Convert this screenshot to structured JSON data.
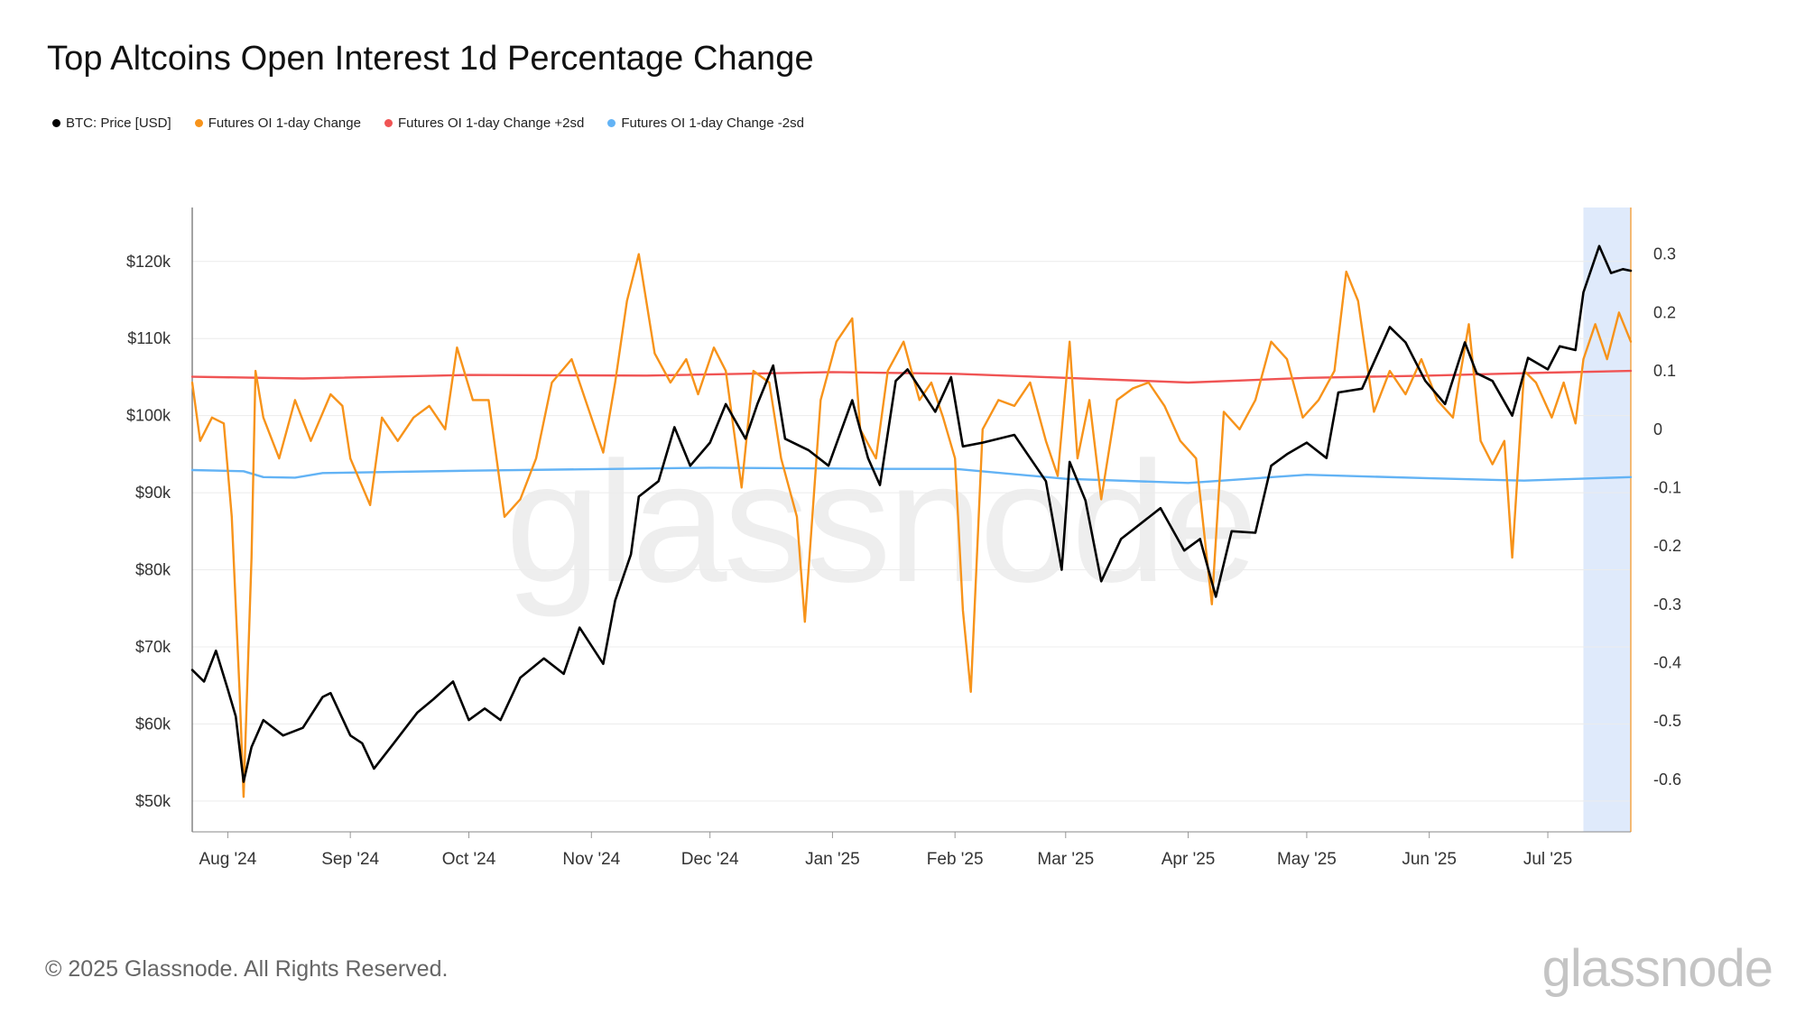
{
  "page": {
    "title": "Top Altcoins Open Interest 1d Percentage Change",
    "copyright": "© 2025 Glassnode. All Rights Reserved.",
    "brand": "glassnode",
    "watermark": "glassnode"
  },
  "legend": [
    {
      "label": "BTC: Price [USD]",
      "color": "#000000"
    },
    {
      "label": "Futures OI 1-day Change",
      "color": "#f7931a"
    },
    {
      "label": "Futures OI 1-day Change +2sd",
      "color": "#f05454"
    },
    {
      "label": "Futures OI 1-day Change -2sd",
      "color": "#63b3f5"
    }
  ],
  "chart_data": {
    "type": "line",
    "title": "Top Altcoins Open Interest 1d Percentage Change",
    "x_axis": {
      "type": "date",
      "range": [
        "2024-07-23",
        "2025-07-22"
      ],
      "ticks": [
        {
          "date": "2024-08-01",
          "label": "Aug '24"
        },
        {
          "date": "2024-09-01",
          "label": "Sep '24"
        },
        {
          "date": "2024-10-01",
          "label": "Oct '24"
        },
        {
          "date": "2024-11-01",
          "label": "Nov '24"
        },
        {
          "date": "2024-12-01",
          "label": "Dec '24"
        },
        {
          "date": "2025-01-01",
          "label": "Jan '25"
        },
        {
          "date": "2025-02-01",
          "label": "Feb '25"
        },
        {
          "date": "2025-03-01",
          "label": "Mar '25"
        },
        {
          "date": "2025-04-01",
          "label": "Apr '25"
        },
        {
          "date": "2025-05-01",
          "label": "May '25"
        },
        {
          "date": "2025-06-01",
          "label": "Jun '25"
        },
        {
          "date": "2025-07-01",
          "label": "Jul '25"
        }
      ]
    },
    "y_left": {
      "range": [
        46000,
        127000
      ],
      "ticks": [
        {
          "value": 50000,
          "label": "$50k"
        },
        {
          "value": 60000,
          "label": "$60k"
        },
        {
          "value": 70000,
          "label": "$70k"
        },
        {
          "value": 80000,
          "label": "$80k"
        },
        {
          "value": 90000,
          "label": "$90k"
        },
        {
          "value": 100000,
          "label": "$100k"
        },
        {
          "value": 110000,
          "label": "$110k"
        },
        {
          "value": 120000,
          "label": "$120k"
        }
      ]
    },
    "y_right": {
      "range": [
        -0.69,
        0.38
      ],
      "ticks": [
        {
          "value": 0.3,
          "label": "0.3"
        },
        {
          "value": 0.2,
          "label": "0.2"
        },
        {
          "value": 0.1,
          "label": "0.1"
        },
        {
          "value": 0,
          "label": "0"
        },
        {
          "value": -0.1,
          "label": "-0.1"
        },
        {
          "value": -0.2,
          "label": "-0.2"
        },
        {
          "value": -0.3,
          "label": "-0.3"
        },
        {
          "value": -0.4,
          "label": "-0.4"
        },
        {
          "value": -0.5,
          "label": "-0.5"
        },
        {
          "value": -0.6,
          "label": "-0.6"
        }
      ]
    },
    "grid": true,
    "highlight": {
      "from": "2025-07-10",
      "to": "2025-07-22"
    },
    "series": [
      {
        "name": "BTC: Price [USD]",
        "axis": "left",
        "color": "#000000",
        "points": [
          [
            "2024-07-23",
            67000
          ],
          [
            "2024-07-26",
            65500
          ],
          [
            "2024-07-29",
            69500
          ],
          [
            "2024-08-01",
            64500
          ],
          [
            "2024-08-03",
            61000
          ],
          [
            "2024-08-05",
            52500
          ],
          [
            "2024-08-07",
            57000
          ],
          [
            "2024-08-10",
            60500
          ],
          [
            "2024-08-15",
            58500
          ],
          [
            "2024-08-20",
            59500
          ],
          [
            "2024-08-25",
            63500
          ],
          [
            "2024-08-27",
            64000
          ],
          [
            "2024-09-01",
            58500
          ],
          [
            "2024-09-04",
            57500
          ],
          [
            "2024-09-07",
            54200
          ],
          [
            "2024-09-12",
            57500
          ],
          [
            "2024-09-18",
            61500
          ],
          [
            "2024-09-22",
            63200
          ],
          [
            "2024-09-27",
            65500
          ],
          [
            "2024-10-01",
            60500
          ],
          [
            "2024-10-05",
            62000
          ],
          [
            "2024-10-09",
            60500
          ],
          [
            "2024-10-14",
            66000
          ],
          [
            "2024-10-20",
            68500
          ],
          [
            "2024-10-25",
            66500
          ],
          [
            "2024-10-29",
            72500
          ],
          [
            "2024-11-04",
            67800
          ],
          [
            "2024-11-07",
            76000
          ],
          [
            "2024-11-11",
            82000
          ],
          [
            "2024-11-13",
            89500
          ],
          [
            "2024-11-18",
            91500
          ],
          [
            "2024-11-22",
            98500
          ],
          [
            "2024-11-26",
            93500
          ],
          [
            "2024-12-01",
            96500
          ],
          [
            "2024-12-05",
            101500
          ],
          [
            "2024-12-10",
            97000
          ],
          [
            "2024-12-13",
            101500
          ],
          [
            "2024-12-17",
            106500
          ],
          [
            "2024-12-20",
            97000
          ],
          [
            "2024-12-26",
            95500
          ],
          [
            "2024-12-31",
            93500
          ],
          [
            "2025-01-06",
            102000
          ],
          [
            "2025-01-10",
            94500
          ],
          [
            "2025-01-13",
            91000
          ],
          [
            "2025-01-17",
            104500
          ],
          [
            "2025-01-20",
            106000
          ],
          [
            "2025-01-27",
            100500
          ],
          [
            "2025-01-31",
            105000
          ],
          [
            "2025-02-03",
            96000
          ],
          [
            "2025-02-08",
            96500
          ],
          [
            "2025-02-16",
            97500
          ],
          [
            "2025-02-24",
            91500
          ],
          [
            "2025-02-28",
            80000
          ],
          [
            "2025-03-02",
            94000
          ],
          [
            "2025-03-06",
            89000
          ],
          [
            "2025-03-10",
            78500
          ],
          [
            "2025-03-15",
            84000
          ],
          [
            "2025-03-20",
            86000
          ],
          [
            "2025-03-25",
            88000
          ],
          [
            "2025-03-31",
            82500
          ],
          [
            "2025-04-04",
            84000
          ],
          [
            "2025-04-08",
            76500
          ],
          [
            "2025-04-12",
            85000
          ],
          [
            "2025-04-18",
            84800
          ],
          [
            "2025-04-22",
            93500
          ],
          [
            "2025-04-26",
            95000
          ],
          [
            "2025-05-01",
            96500
          ],
          [
            "2025-05-06",
            94500
          ],
          [
            "2025-05-09",
            103000
          ],
          [
            "2025-05-15",
            103500
          ],
          [
            "2025-05-22",
            111500
          ],
          [
            "2025-05-26",
            109500
          ],
          [
            "2025-05-31",
            104500
          ],
          [
            "2025-06-05",
            101500
          ],
          [
            "2025-06-10",
            109500
          ],
          [
            "2025-06-13",
            105500
          ],
          [
            "2025-06-17",
            104500
          ],
          [
            "2025-06-22",
            100000
          ],
          [
            "2025-06-26",
            107500
          ],
          [
            "2025-07-01",
            106000
          ],
          [
            "2025-07-04",
            109000
          ],
          [
            "2025-07-08",
            108500
          ],
          [
            "2025-07-10",
            116000
          ],
          [
            "2025-07-14",
            122000
          ],
          [
            "2025-07-17",
            118500
          ],
          [
            "2025-07-20",
            119000
          ],
          [
            "2025-07-22",
            118800
          ]
        ]
      },
      {
        "name": "Futures OI 1-day Change",
        "axis": "right",
        "color": "#f7931a",
        "points": [
          [
            "2024-07-23",
            0.08
          ],
          [
            "2024-07-25",
            -0.02
          ],
          [
            "2024-07-28",
            0.02
          ],
          [
            "2024-07-31",
            0.01
          ],
          [
            "2024-08-02",
            -0.15
          ],
          [
            "2024-08-04",
            -0.45
          ],
          [
            "2024-08-05",
            -0.63
          ],
          [
            "2024-08-07",
            -0.22
          ],
          [
            "2024-08-08",
            0.1
          ],
          [
            "2024-08-10",
            0.02
          ],
          [
            "2024-08-14",
            -0.05
          ],
          [
            "2024-08-18",
            0.05
          ],
          [
            "2024-08-22",
            -0.02
          ],
          [
            "2024-08-27",
            0.06
          ],
          [
            "2024-08-30",
            0.04
          ],
          [
            "2024-09-01",
            -0.05
          ],
          [
            "2024-09-06",
            -0.13
          ],
          [
            "2024-09-09",
            0.02
          ],
          [
            "2024-09-13",
            -0.02
          ],
          [
            "2024-09-17",
            0.02
          ],
          [
            "2024-09-21",
            0.04
          ],
          [
            "2024-09-25",
            0.0
          ],
          [
            "2024-09-28",
            0.14
          ],
          [
            "2024-10-02",
            0.05
          ],
          [
            "2024-10-06",
            0.05
          ],
          [
            "2024-10-10",
            -0.15
          ],
          [
            "2024-10-14",
            -0.12
          ],
          [
            "2024-10-18",
            -0.05
          ],
          [
            "2024-10-22",
            0.08
          ],
          [
            "2024-10-27",
            0.12
          ],
          [
            "2024-10-31",
            0.04
          ],
          [
            "2024-11-04",
            -0.04
          ],
          [
            "2024-11-07",
            0.08
          ],
          [
            "2024-11-10",
            0.22
          ],
          [
            "2024-11-13",
            0.3
          ],
          [
            "2024-11-17",
            0.13
          ],
          [
            "2024-11-21",
            0.08
          ],
          [
            "2024-11-25",
            0.12
          ],
          [
            "2024-11-28",
            0.06
          ],
          [
            "2024-12-02",
            0.14
          ],
          [
            "2024-12-05",
            0.1
          ],
          [
            "2024-12-09",
            -0.1
          ],
          [
            "2024-12-12",
            0.1
          ],
          [
            "2024-12-16",
            0.08
          ],
          [
            "2024-12-19",
            -0.05
          ],
          [
            "2024-12-23",
            -0.15
          ],
          [
            "2024-12-25",
            -0.33
          ],
          [
            "2024-12-29",
            0.05
          ],
          [
            "2025-01-02",
            0.15
          ],
          [
            "2025-01-06",
            0.19
          ],
          [
            "2025-01-08",
            0.0
          ],
          [
            "2025-01-12",
            -0.05
          ],
          [
            "2025-01-15",
            0.1
          ],
          [
            "2025-01-19",
            0.15
          ],
          [
            "2025-01-23",
            0.05
          ],
          [
            "2025-01-26",
            0.08
          ],
          [
            "2025-01-29",
            0.02
          ],
          [
            "2025-02-01",
            -0.05
          ],
          [
            "2025-02-03",
            -0.31
          ],
          [
            "2025-02-05",
            -0.45
          ],
          [
            "2025-02-08",
            0.0
          ],
          [
            "2025-02-12",
            0.05
          ],
          [
            "2025-02-16",
            0.04
          ],
          [
            "2025-02-20",
            0.08
          ],
          [
            "2025-02-24",
            -0.02
          ],
          [
            "2025-02-27",
            -0.08
          ],
          [
            "2025-03-02",
            0.15
          ],
          [
            "2025-03-04",
            -0.05
          ],
          [
            "2025-03-07",
            0.05
          ],
          [
            "2025-03-10",
            -0.12
          ],
          [
            "2025-03-14",
            0.05
          ],
          [
            "2025-03-18",
            0.07
          ],
          [
            "2025-03-22",
            0.08
          ],
          [
            "2025-03-26",
            0.04
          ],
          [
            "2025-03-30",
            -0.02
          ],
          [
            "2025-04-03",
            -0.05
          ],
          [
            "2025-04-07",
            -0.3
          ],
          [
            "2025-04-10",
            0.03
          ],
          [
            "2025-04-14",
            0.0
          ],
          [
            "2025-04-18",
            0.05
          ],
          [
            "2025-04-22",
            0.15
          ],
          [
            "2025-04-26",
            0.12
          ],
          [
            "2025-04-30",
            0.02
          ],
          [
            "2025-05-04",
            0.05
          ],
          [
            "2025-05-08",
            0.1
          ],
          [
            "2025-05-11",
            0.27
          ],
          [
            "2025-05-14",
            0.22
          ],
          [
            "2025-05-18",
            0.03
          ],
          [
            "2025-05-22",
            0.1
          ],
          [
            "2025-05-26",
            0.06
          ],
          [
            "2025-05-30",
            0.12
          ],
          [
            "2025-06-03",
            0.05
          ],
          [
            "2025-06-07",
            0.02
          ],
          [
            "2025-06-11",
            0.18
          ],
          [
            "2025-06-14",
            -0.02
          ],
          [
            "2025-06-17",
            -0.06
          ],
          [
            "2025-06-20",
            -0.02
          ],
          [
            "2025-06-22",
            -0.22
          ],
          [
            "2025-06-25",
            0.1
          ],
          [
            "2025-06-28",
            0.08
          ],
          [
            "2025-07-02",
            0.02
          ],
          [
            "2025-07-05",
            0.08
          ],
          [
            "2025-07-08",
            0.01
          ],
          [
            "2025-07-10",
            0.12
          ],
          [
            "2025-07-13",
            0.18
          ],
          [
            "2025-07-16",
            0.12
          ],
          [
            "2025-07-19",
            0.2
          ],
          [
            "2025-07-22",
            0.15
          ]
        ]
      },
      {
        "name": "Futures OI 1-day Change +2sd",
        "axis": "right",
        "color": "#f05454",
        "points": [
          [
            "2024-07-23",
            0.09
          ],
          [
            "2024-08-20",
            0.087
          ],
          [
            "2024-10-01",
            0.093
          ],
          [
            "2024-11-15",
            0.092
          ],
          [
            "2025-01-01",
            0.098
          ],
          [
            "2025-02-01",
            0.095
          ],
          [
            "2025-03-01",
            0.088
          ],
          [
            "2025-04-01",
            0.08
          ],
          [
            "2025-05-01",
            0.088
          ],
          [
            "2025-06-01",
            0.092
          ],
          [
            "2025-07-01",
            0.097
          ],
          [
            "2025-07-22",
            0.1
          ]
        ]
      },
      {
        "name": "Futures OI 1-day Change -2sd",
        "axis": "right",
        "color": "#63b3f5",
        "points": [
          [
            "2024-07-23",
            -0.07
          ],
          [
            "2024-08-05",
            -0.072
          ],
          [
            "2024-08-10",
            -0.082
          ],
          [
            "2024-08-18",
            -0.083
          ],
          [
            "2024-08-25",
            -0.075
          ],
          [
            "2024-10-01",
            -0.071
          ],
          [
            "2024-12-01",
            -0.066
          ],
          [
            "2025-01-15",
            -0.068
          ],
          [
            "2025-02-01",
            -0.068
          ],
          [
            "2025-03-01",
            -0.085
          ],
          [
            "2025-04-01",
            -0.092
          ],
          [
            "2025-05-01",
            -0.078
          ],
          [
            "2025-06-01",
            -0.084
          ],
          [
            "2025-06-25",
            -0.088
          ],
          [
            "2025-07-22",
            -0.082
          ]
        ]
      }
    ]
  }
}
